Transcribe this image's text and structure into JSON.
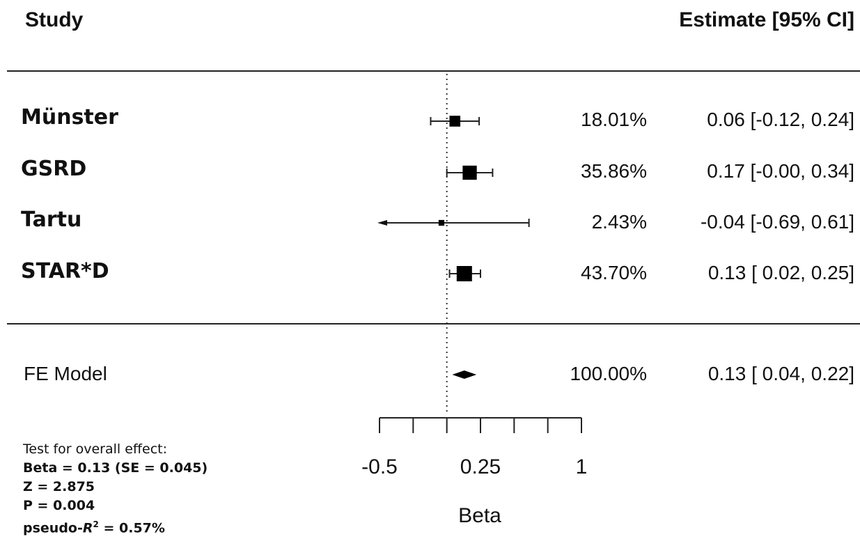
{
  "chart_data": {
    "type": "forest",
    "header": {
      "study": "Study",
      "estimate": "Estimate [95% CI]"
    },
    "studies": [
      {
        "name": "Münster",
        "estimate": 0.06,
        "ci_low": -0.12,
        "ci_high": 0.24,
        "weight": "18.01%",
        "ci_text": "0.06 [-0.12, 0.24]"
      },
      {
        "name": "GSRD",
        "estimate": 0.17,
        "ci_low": -0.0,
        "ci_high": 0.34,
        "weight": "35.86%",
        "ci_text": "0.17 [-0.00, 0.34]"
      },
      {
        "name": "Tartu",
        "estimate": -0.04,
        "ci_low": -0.69,
        "ci_high": 0.61,
        "weight": "2.43%",
        "ci_text": "-0.04 [-0.69, 0.61]"
      },
      {
        "name": "STAR*D",
        "estimate": 0.13,
        "ci_low": 0.02,
        "ci_high": 0.25,
        "weight": "43.70%",
        "ci_text": "0.13 [ 0.02, 0.25]"
      }
    ],
    "summary": {
      "name": "FE Model",
      "estimate": 0.13,
      "ci_low": 0.04,
      "ci_high": 0.22,
      "weight": "100.00%",
      "ci_text": "0.13 [ 0.04, 0.22]"
    },
    "x_axis": {
      "label": "Beta",
      "ticks": [
        -0.5,
        -0.25,
        0,
        0.25,
        0.5,
        0.75,
        1
      ],
      "tick_labels": [
        "-0.5",
        "0.25",
        "1"
      ],
      "labeled_ticks": [
        -0.5,
        0.25,
        1
      ],
      "xlim": [
        -0.5,
        1
      ],
      "reference_line": 0
    },
    "stats": {
      "title": "Test for overall effect:",
      "beta": "Beta = 0.13 (SE = 0.045)",
      "z": "Z = 2.875",
      "p": "P = 0.004",
      "r2_prefix": "pseudo-",
      "r2_symbol": "R",
      "r2_sup": "2",
      "r2_value": " = 0.57%"
    }
  }
}
